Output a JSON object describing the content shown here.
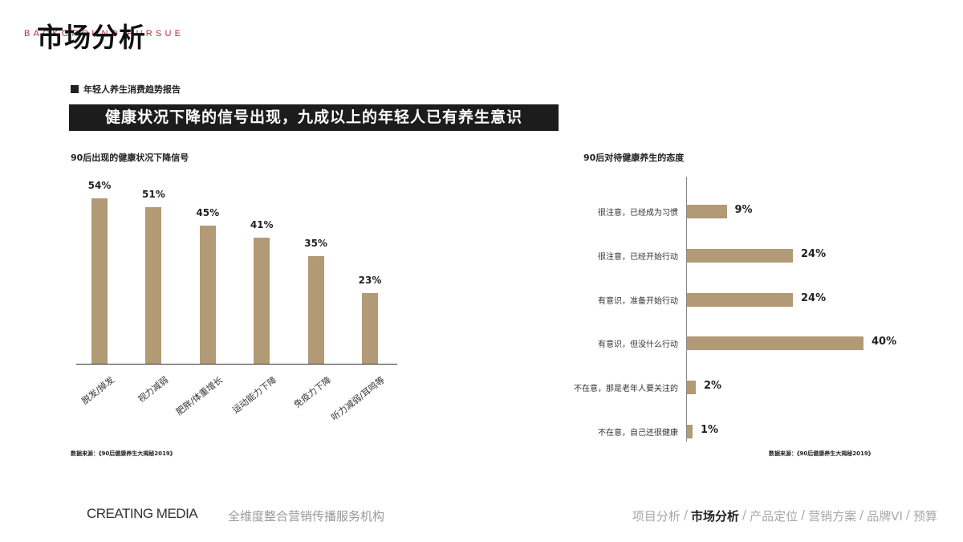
{
  "header": {
    "background_word": "BACKGROUND PURSUE",
    "title": "市场分析"
  },
  "report": {
    "label": "年轻人养生消费趋势报告",
    "headline": "健康状况下降的信号出现，九成以上的年轻人已有养生意识"
  },
  "left_chart": {
    "title": "90后出现的健康状况下降信号",
    "source": "数据来源：《90后健康养生大揭秘2019》"
  },
  "right_chart": {
    "title": "90后对待健康养生的态度",
    "source": "数据来源：《90后健康养生大揭秘2019》"
  },
  "chart_data": [
    {
      "type": "bar",
      "title": "90后出现的健康状况下降信号",
      "categories": [
        "脱发/掉发",
        "视力减弱",
        "肥胖/体重增长",
        "运动能力下降",
        "免疫力下降",
        "听力减弱/耳鸣等"
      ],
      "values": [
        54,
        51,
        45,
        41,
        35,
        23
      ],
      "labels": [
        "54%",
        "51%",
        "45%",
        "41%",
        "35%",
        "23%"
      ],
      "xlabel": "",
      "ylabel": "",
      "unit": "%",
      "grid": false,
      "color": "#b29a76"
    },
    {
      "type": "bar",
      "orientation": "horizontal",
      "title": "90后对待健康养生的态度",
      "categories": [
        "很注意，已经成为习惯",
        "很注意，已经开始行动",
        "有意识，准备开始行动",
        "有意识，但没什么行动",
        "不在意，那是老年人要关注的",
        "不在意，自己还很健康"
      ],
      "values": [
        9,
        24,
        24,
        40,
        2,
        1
      ],
      "labels": [
        "9%",
        "24%",
        "24%",
        "40%",
        "2%",
        "1%"
      ],
      "xlabel": "",
      "ylabel": "",
      "unit": "%",
      "grid": false,
      "color": "#b29a76"
    }
  ],
  "footer": {
    "brand": "CREATING MEDIA",
    "tagline": "全维度整合营销传播服务机构",
    "nav": [
      {
        "label": "项目分析",
        "active": false
      },
      {
        "label": "市场分析",
        "active": true
      },
      {
        "label": "产品定位",
        "active": false
      },
      {
        "label": "营销方案",
        "active": false
      },
      {
        "label": "品牌VI",
        "active": false
      },
      {
        "label": "预算",
        "active": false
      }
    ],
    "separator": "/"
  },
  "colors": {
    "bar": "#b29a76",
    "accent_red": "#c8283a",
    "headline_bg": "#1c1c1c"
  }
}
